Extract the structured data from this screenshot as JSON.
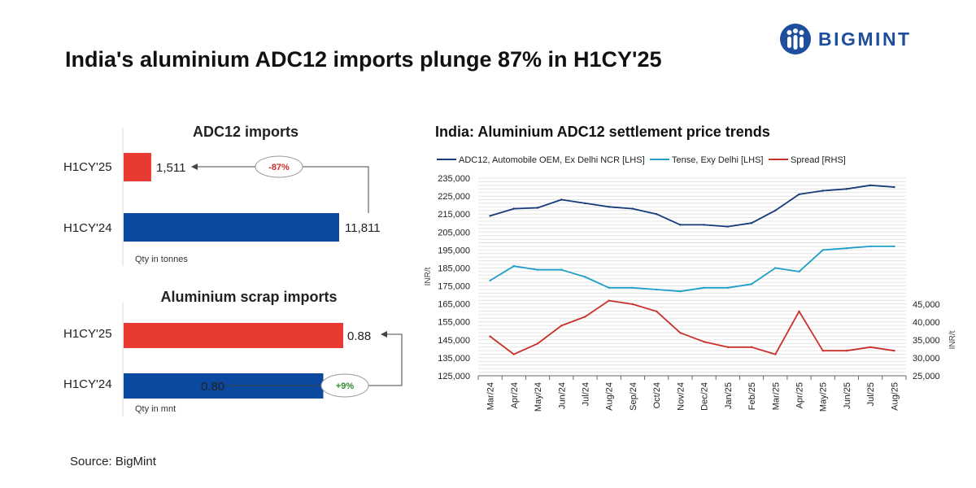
{
  "brand": {
    "name": "BIGMINT"
  },
  "title": "India's aluminium ADC12 imports plunge 87% in H1CY'25",
  "source": "Source: BigMint",
  "colors": {
    "navy": "#163a7a",
    "cyan": "#1e9fc8",
    "red": "#c9302c",
    "bar_red": "#e83a32",
    "bar_blue": "#0b49a0",
    "brand_blue": "#1f4e9c",
    "up_green": "#2e8b2e",
    "down_red": "#d22b2b"
  },
  "chart_data": [
    {
      "type": "bar",
      "orientation": "horizontal",
      "title": "ADC12 imports",
      "categories": [
        "H1CY'25",
        "H1CY'24"
      ],
      "values": [
        1511,
        11811
      ],
      "value_labels": [
        "1,511",
        "11,811"
      ],
      "change_label": "-87%",
      "unit_note": "Qty in tonnes"
    },
    {
      "type": "bar",
      "orientation": "horizontal",
      "title": "Aluminium scrap imports",
      "categories": [
        "H1CY'25",
        "H1CY'24"
      ],
      "values": [
        0.88,
        0.8
      ],
      "value_labels": [
        "0.88",
        "0.80"
      ],
      "change_label": "+9%",
      "unit_note": "Qty in mnt"
    },
    {
      "type": "line",
      "title": "India: Aluminium ADC12 settlement price trends",
      "x": [
        "Mar/24",
        "Apr/24",
        "May/24",
        "Jun/24",
        "Jul/24",
        "Aug/24",
        "Sep/24",
        "Oct/24",
        "Nov/24",
        "Dec/24",
        "Jan/25",
        "Feb/25",
        "Mar/25",
        "Apr/25",
        "May/25",
        "Jun/25",
        "Jul/25",
        "Aug/25"
      ],
      "series": [
        {
          "name": "ADC12, Automobile OEM, Ex Delhi NCR [LHS]",
          "axis": "left",
          "values": [
            214000,
            218000,
            218500,
            223000,
            221000,
            219000,
            218000,
            215000,
            209000,
            209000,
            208000,
            210000,
            217000,
            226000,
            228000,
            229000,
            231000,
            230000
          ]
        },
        {
          "name": "Tense, Exy Delhi [LHS]",
          "axis": "left",
          "values": [
            178000,
            186000,
            184000,
            184000,
            180000,
            174000,
            174000,
            173000,
            172000,
            174000,
            174000,
            176000,
            185000,
            183000,
            195000,
            196000,
            197000,
            197000
          ]
        },
        {
          "name": "Spread [RHS]",
          "axis": "right",
          "values": [
            36000,
            31000,
            34000,
            39000,
            41500,
            46000,
            45000,
            43000,
            37000,
            34500,
            33000,
            33000,
            31000,
            43000,
            32000,
            32000,
            33000,
            32000
          ]
        }
      ],
      "left_axis": {
        "label": "INR/t",
        "range": [
          125000,
          235000
        ],
        "ticks": [
          "125,000",
          "135,000",
          "145,000",
          "155,000",
          "165,000",
          "175,000",
          "185,000",
          "195,000",
          "205,000",
          "215,000",
          "225,000",
          "235,000"
        ]
      },
      "right_axis": {
        "label": "INR/t",
        "range": [
          25000,
          45000
        ],
        "ticks": [
          "25,000",
          "30,000",
          "35,000",
          "40,000",
          "45,000"
        ]
      },
      "grid": true,
      "legend": "top"
    }
  ]
}
